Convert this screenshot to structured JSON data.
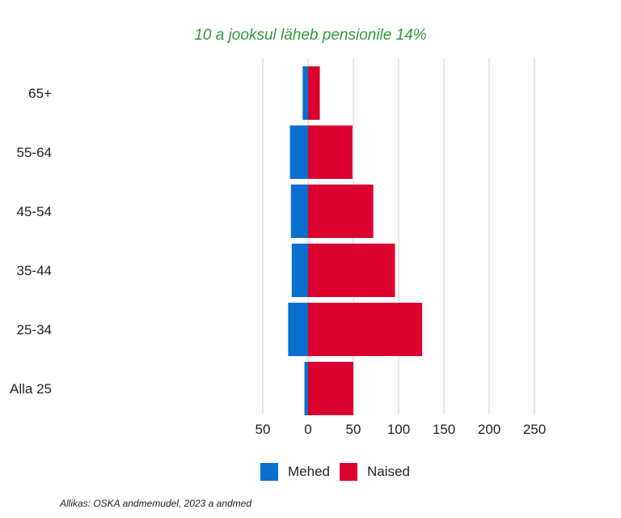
{
  "colors": {
    "men": "#0a6fcf",
    "women": "#dc0030",
    "grid": "#dddddd",
    "title": "#2e9a3a"
  },
  "chart_data": {
    "type": "bar",
    "orientation": "horizontal",
    "title": "10 a jooksul läheb pensionile 14%",
    "categories": [
      "65+",
      "55-64",
      "45-54",
      "35-44",
      "25-34",
      "Alla 25"
    ],
    "series": [
      {
        "name": "Mehed",
        "values": [
          -6,
          -20,
          -19,
          -18,
          -22,
          -4
        ]
      },
      {
        "name": "Naised",
        "values": [
          13,
          49,
          72,
          96,
          126,
          50
        ]
      }
    ],
    "xticks": [
      -50,
      0,
      50,
      100,
      150,
      200,
      250
    ],
    "xtick_labels": [
      "50",
      "0",
      "50",
      "100",
      "150",
      "200",
      "250"
    ],
    "xlim": [
      -55,
      265
    ],
    "grid": "vertical",
    "legend": "bottom",
    "source": "Allikas: OSKA andmemudel, 2023 a andmed"
  }
}
